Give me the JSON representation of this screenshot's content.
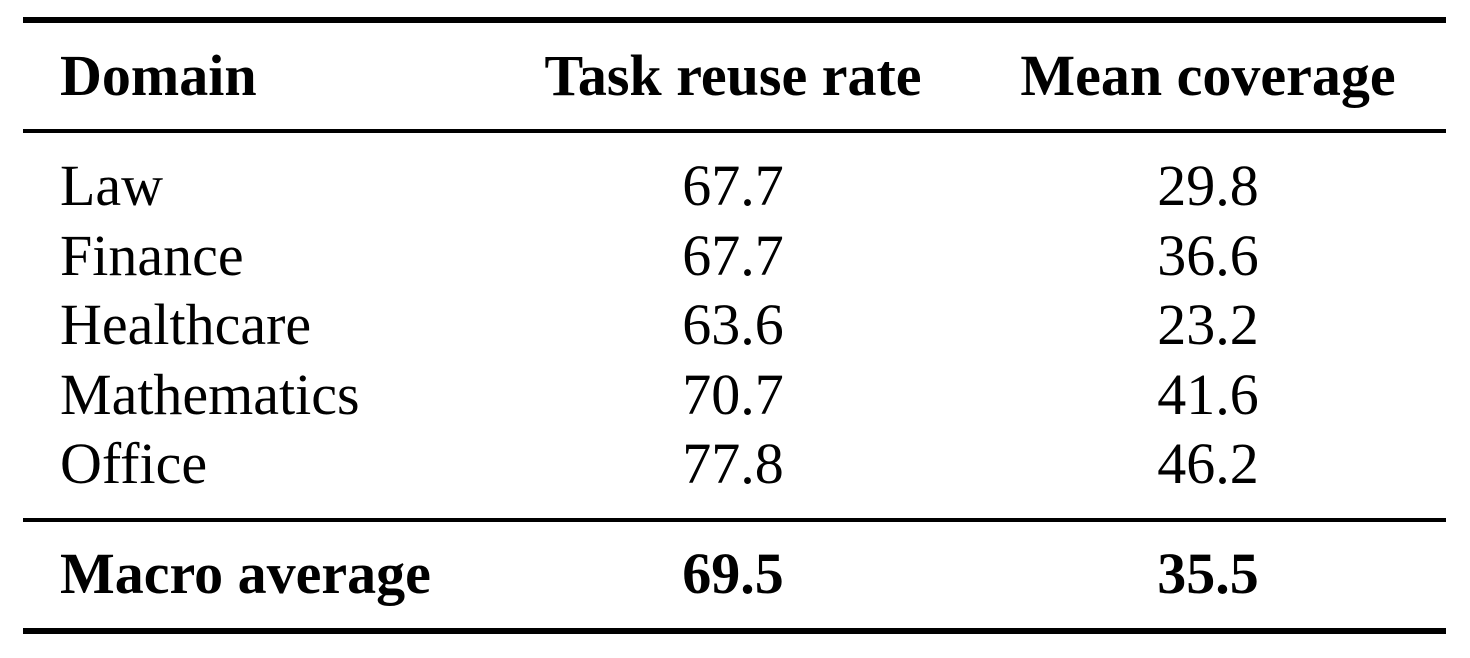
{
  "table": {
    "header": [
      "Domain",
      "Task reuse rate",
      "Mean coverage"
    ],
    "rows": [
      [
        "Law",
        "67.7",
        "29.8"
      ],
      [
        "Finance",
        "67.7",
        "36.6"
      ],
      [
        "Healthcare",
        "63.6",
        "23.2"
      ],
      [
        "Mathematics",
        "70.7",
        "41.6"
      ],
      [
        "Office",
        "77.8",
        "46.2"
      ]
    ],
    "footer": [
      "Macro average",
      "69.5",
      "35.5"
    ]
  }
}
